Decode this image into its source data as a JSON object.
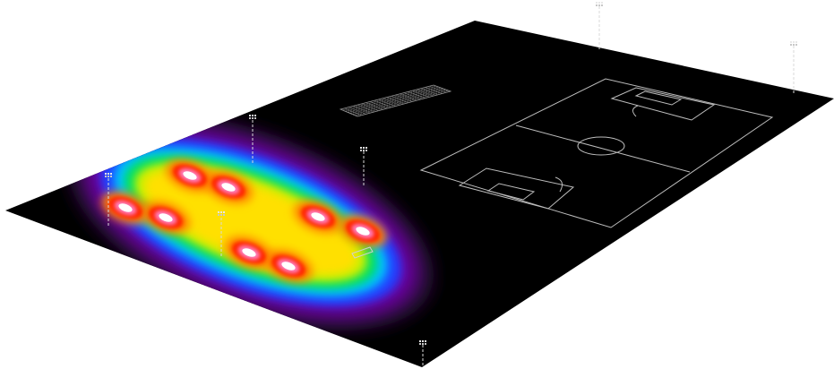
{
  "scene": {
    "view": "3D perspective render of a sports ground lighting calculation",
    "ground_color": "#000000",
    "surround_color": "#ffffff",
    "field_line_color": "#bfbfbf",
    "heatmap": {
      "palette": [
        "#2a0b3a",
        "#6a00a0",
        "#2040ff",
        "#00c0ff",
        "#00e060",
        "#c8f000",
        "#ffe000",
        "#ff8000",
        "#ff2000",
        "#ff80c0",
        "#ffffff"
      ],
      "hotspots_count": 8
    },
    "light_poles_count": 7,
    "structures": [
      "grandstand-grid",
      "football-pitch-outline",
      "small-goal-marker"
    ]
  }
}
